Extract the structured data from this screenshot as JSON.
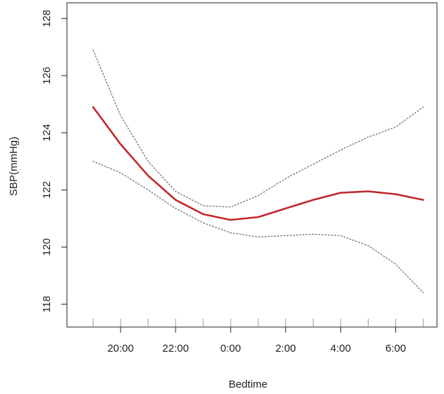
{
  "chart_data": {
    "type": "line",
    "title": "",
    "xlabel": "Bedtime",
    "ylabel": "SBP(mmHg)",
    "x_tick_labels": [
      "20:00",
      "22:00",
      "0:00",
      "2:00",
      "4:00",
      "6:00"
    ],
    "x_tick_values": [
      20,
      22,
      24,
      26,
      28,
      30
    ],
    "x_minor_ticks": [
      19,
      20,
      21,
      22,
      23,
      24,
      25,
      26,
      27,
      28,
      29,
      30,
      31
    ],
    "y_ticks": [
      118,
      120,
      122,
      124,
      126,
      128
    ],
    "xlim": [
      18.05,
      31.5
    ],
    "ylim": [
      117.2,
      128.55
    ],
    "grid": false,
    "series": [
      {
        "role": "estimate",
        "color": "#c0282b",
        "style": "solid",
        "x": [
          19,
          20,
          21,
          22,
          23,
          24,
          25,
          26,
          27,
          28,
          29,
          30,
          31
        ],
        "y": [
          124.9,
          123.6,
          122.5,
          121.65,
          121.15,
          120.95,
          121.05,
          121.35,
          121.65,
          121.9,
          121.95,
          121.85,
          121.65
        ]
      },
      {
        "role": "upper-ci",
        "color": "#777777",
        "style": "dotted",
        "x": [
          19,
          20,
          21,
          22,
          23,
          24,
          25,
          26,
          27,
          28,
          29,
          30,
          31
        ],
        "y": [
          126.9,
          124.6,
          123.0,
          121.95,
          121.45,
          121.4,
          121.8,
          122.4,
          122.9,
          123.4,
          123.85,
          124.2,
          124.9
        ]
      },
      {
        "role": "lower-ci",
        "color": "#777777",
        "style": "dotted",
        "x": [
          19,
          20,
          21,
          22,
          23,
          24,
          25,
          26,
          27,
          28,
          29,
          30,
          31
        ],
        "y": [
          123.0,
          122.6,
          122.0,
          121.35,
          120.85,
          120.5,
          120.35,
          120.4,
          120.45,
          120.4,
          120.05,
          119.4,
          118.4
        ]
      }
    ]
  }
}
